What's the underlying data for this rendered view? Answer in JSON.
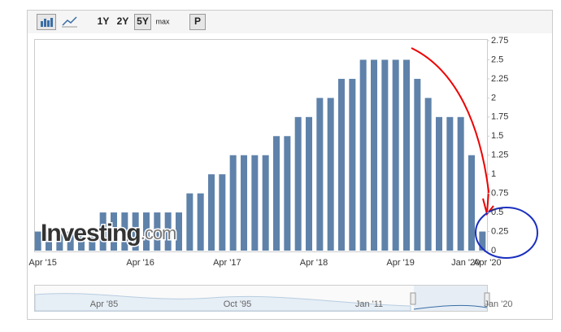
{
  "toolbar": {
    "ranges": [
      "1Y",
      "2Y",
      "5Y",
      "max"
    ],
    "button": "P"
  },
  "chart_data": {
    "type": "bar",
    "categories": [
      "Apr '15",
      null,
      null,
      null,
      null,
      null,
      null,
      null,
      null,
      "Apr '16",
      null,
      null,
      null,
      null,
      null,
      null,
      null,
      "Apr '17",
      null,
      null,
      null,
      null,
      null,
      null,
      null,
      "Apr '18",
      null,
      null,
      null,
      null,
      null,
      null,
      null,
      "Apr '19",
      null,
      null,
      null,
      null,
      null,
      "Jan '20",
      null,
      "Apr '20"
    ],
    "values": [
      0.25,
      0.25,
      0.25,
      0.25,
      0.25,
      0.25,
      0.5,
      0.5,
      0.5,
      0.5,
      0.5,
      0.5,
      0.5,
      0.5,
      0.75,
      0.75,
      1,
      1,
      1.25,
      1.25,
      1.25,
      1.25,
      1.5,
      1.5,
      1.75,
      1.75,
      2,
      2,
      2.25,
      2.25,
      2.5,
      2.5,
      2.5,
      2.5,
      2.5,
      2.25,
      2,
      1.75,
      1.75,
      1.75,
      1.25,
      0.25
    ],
    "color": "#5f82aa",
    "ylim": [
      0,
      2.75
    ],
    "yticks": [
      0,
      0.25,
      0.5,
      0.75,
      1,
      1.25,
      1.5,
      1.75,
      2,
      2.25,
      2.5,
      2.75
    ],
    "grid": false,
    "watermark": "Investing",
    "watermark_suffix": ".com"
  },
  "navigator": {
    "labels": [
      "Apr '85",
      "Oct '95",
      "Jan '11",
      "Jan '20"
    ]
  }
}
